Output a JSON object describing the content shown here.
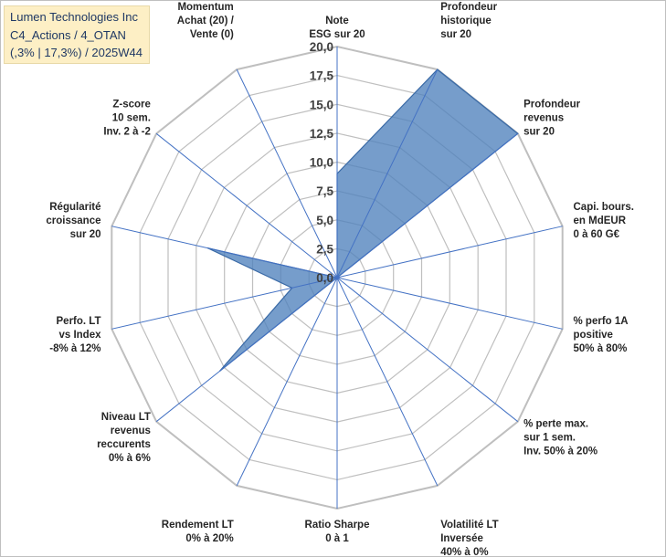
{
  "info_box": {
    "line1": "Lumen Technologies Inc",
    "line2": "C4_Actions / 4_OTAN",
    "line3": "(,3% | 17,3%) / 2025W44"
  },
  "colors": {
    "fill": "#4f81bd",
    "stroke": "#3a6aa6",
    "grid": "#bfbfbf",
    "spoke": "#4472c4"
  },
  "chart_data": {
    "type": "radar",
    "scale": {
      "min": 0,
      "max": 20,
      "step": 2.5
    },
    "ticks": [
      "0,0",
      "2,5",
      "5,0",
      "7,5",
      "10,0",
      "12,5",
      "15,0",
      "17,5",
      "20,0"
    ],
    "axes": [
      {
        "label": [
          "Note",
          "ESG sur 20"
        ],
        "value": 9
      },
      {
        "label": [
          "Profondeur",
          "historique",
          "sur 20"
        ],
        "value": 20
      },
      {
        "label": [
          "Profondeur",
          "revenus",
          "sur 20"
        ],
        "value": 20
      },
      {
        "label": [
          "Capi. bours.",
          "en MdEUR",
          "0 à 60 G€"
        ],
        "value": 0
      },
      {
        "label": [
          "% perfo 1A",
          "positive",
          "50% à 80%"
        ],
        "value": 0
      },
      {
        "label": [
          "% perte max.",
          "sur 1 sem.",
          "Inv. 50% à 20%"
        ],
        "value": 0
      },
      {
        "label": [
          "Volatilité LT",
          "Inversée",
          "40% à 0%"
        ],
        "value": 0
      },
      {
        "label": [
          "Ratio Sharpe",
          "0 à 1"
        ],
        "value": 0
      },
      {
        "label": [
          "Rendement LT",
          "0% à 20%"
        ],
        "value": 0
      },
      {
        "label": [
          "Niveau LT",
          "revenus",
          "reccurents",
          "0% à 6%"
        ],
        "value": 13
      },
      {
        "label": [
          "Perfo. LT",
          "vs Index",
          "-8% à 12%"
        ],
        "value": 4
      },
      {
        "label": [
          "Régularité",
          "croissance",
          "sur 20"
        ],
        "value": 11.5
      },
      {
        "label": [
          "Z-score",
          "10 sem.",
          "Inv. 2 à -2"
        ],
        "value": 0
      },
      {
        "label": [
          "Momentum",
          "Achat (20) /",
          "Vente (0)"
        ],
        "value": 0
      }
    ]
  }
}
